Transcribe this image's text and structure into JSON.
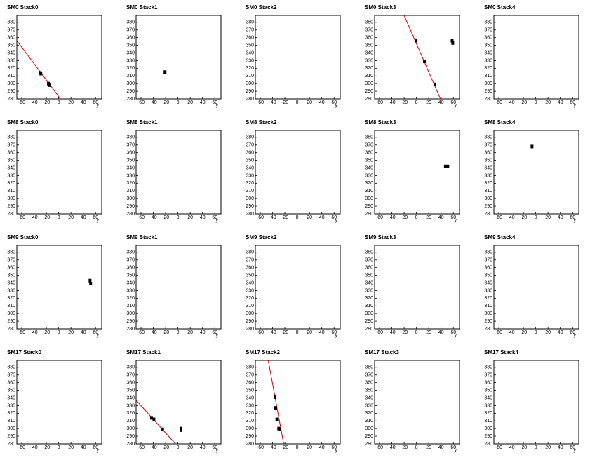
{
  "chart_data": [
    {
      "type": "scatter",
      "title": "SM0 Stack0",
      "xlabel": "y",
      "xlim": [
        -68,
        70
      ],
      "ylim": [
        280,
        389
      ],
      "xticks": [
        -60,
        -40,
        -20,
        0,
        20,
        40,
        60
      ],
      "yticks": [
        280,
        290,
        300,
        310,
        320,
        330,
        340,
        350,
        360,
        370,
        380
      ],
      "color": "#000000",
      "x": [
        -30,
        -29,
        -16.6,
        -15.4
      ],
      "y": [
        314,
        313,
        300,
        298
      ],
      "fit": {
        "color": "#d40000",
        "x": [
          -68,
          3
        ],
        "y": [
          356,
          280
        ]
      }
    },
    {
      "type": "scatter",
      "title": "SM0 Stack1",
      "xlabel": "y",
      "xlim": [
        -68,
        70
      ],
      "ylim": [
        280,
        389
      ],
      "xticks": [
        -60,
        -40,
        -20,
        0,
        20,
        40,
        60
      ],
      "yticks": [
        280,
        290,
        300,
        310,
        320,
        330,
        340,
        350,
        360,
        370,
        380
      ],
      "color": "#000000",
      "x": [
        -21
      ],
      "y": [
        315
      ]
    },
    {
      "type": "scatter",
      "title": "SM0 Stack2",
      "xlabel": "y",
      "xlim": [
        -68,
        70
      ],
      "ylim": [
        280,
        389
      ],
      "xticks": [
        -60,
        -40,
        -20,
        0,
        20,
        40,
        60
      ],
      "yticks": [
        280,
        290,
        300,
        310,
        320,
        330,
        340,
        350,
        360,
        370,
        380
      ],
      "color": "#000000",
      "x": [],
      "y": []
    },
    {
      "type": "scatter",
      "title": "SM0 Stack3",
      "xlabel": "y",
      "xlim": [
        -68,
        70
      ],
      "ylim": [
        280,
        389
      ],
      "xticks": [
        -60,
        -40,
        -20,
        0,
        20,
        40,
        60
      ],
      "yticks": [
        280,
        290,
        300,
        310,
        320,
        330,
        340,
        350,
        360,
        370,
        380
      ],
      "color": "#000000",
      "x": [
        -0.6,
        13,
        30,
        58,
        59
      ],
      "y": [
        356,
        329,
        299,
        356,
        353
      ],
      "fit": {
        "color": "#d40000",
        "x": [
          -20,
          39
        ],
        "y": [
          389,
          280
        ]
      }
    },
    {
      "type": "scatter",
      "title": "SM0 Stack4",
      "xlabel": "y",
      "xlim": [
        -68,
        70
      ],
      "ylim": [
        280,
        389
      ],
      "xticks": [
        -60,
        -40,
        -20,
        0,
        20,
        40,
        60
      ],
      "yticks": [
        280,
        290,
        300,
        310,
        320,
        330,
        340,
        350,
        360,
        370,
        380
      ],
      "color": "#000000",
      "x": [],
      "y": []
    },
    {
      "type": "scatter",
      "title": "SM8 Stack0",
      "xlabel": "y",
      "xlim": [
        -68,
        70
      ],
      "ylim": [
        280,
        389
      ],
      "xticks": [
        -60,
        -40,
        -20,
        0,
        20,
        40,
        60
      ],
      "yticks": [
        280,
        290,
        300,
        310,
        320,
        330,
        340,
        350,
        360,
        370,
        380
      ],
      "color": "#000000",
      "x": [],
      "y": []
    },
    {
      "type": "scatter",
      "title": "SM8 Stack1",
      "xlabel": "y",
      "xlim": [
        -68,
        70
      ],
      "ylim": [
        280,
        389
      ],
      "xticks": [
        -60,
        -40,
        -20,
        0,
        20,
        40,
        60
      ],
      "yticks": [
        280,
        290,
        300,
        310,
        320,
        330,
        340,
        350,
        360,
        370,
        380
      ],
      "color": "#000000",
      "x": [],
      "y": []
    },
    {
      "type": "scatter",
      "title": "SM8 Stack2",
      "xlabel": "y",
      "xlim": [
        -68,
        70
      ],
      "ylim": [
        280,
        389
      ],
      "xticks": [
        -60,
        -40,
        -20,
        0,
        20,
        40,
        60
      ],
      "yticks": [
        280,
        290,
        300,
        310,
        320,
        330,
        340,
        350,
        360,
        370,
        380
      ],
      "color": "#000000",
      "x": [],
      "y": []
    },
    {
      "type": "scatter",
      "title": "SM8 Stack3",
      "xlabel": "y",
      "xlim": [
        -68,
        70
      ],
      "ylim": [
        280,
        389
      ],
      "xticks": [
        -60,
        -40,
        -20,
        0,
        20,
        40,
        60
      ],
      "yticks": [
        280,
        290,
        300,
        310,
        320,
        330,
        340,
        350,
        360,
        370,
        380
      ],
      "color": "#000000",
      "x": [
        47,
        51
      ],
      "y": [
        342,
        342
      ]
    },
    {
      "type": "scatter",
      "title": "SM8 Stack4",
      "xlabel": "y",
      "xlim": [
        -68,
        70
      ],
      "ylim": [
        280,
        389
      ],
      "xticks": [
        -60,
        -40,
        -20,
        0,
        20,
        40,
        60
      ],
      "yticks": [
        280,
        290,
        300,
        310,
        320,
        330,
        340,
        350,
        360,
        370,
        380
      ],
      "color": "#000000",
      "x": [
        -6
      ],
      "y": [
        368
      ]
    },
    {
      "type": "scatter",
      "title": "SM9 Stack0",
      "xlabel": "y",
      "xlim": [
        -68,
        70
      ],
      "ylim": [
        280,
        389
      ],
      "xticks": [
        -60,
        -40,
        -20,
        0,
        20,
        40,
        60
      ],
      "yticks": [
        280,
        290,
        300,
        310,
        320,
        330,
        340,
        350,
        360,
        370,
        380
      ],
      "color": "#000000",
      "x": [
        51,
        52
      ],
      "y": [
        343,
        339
      ]
    },
    {
      "type": "scatter",
      "title": "SM9 Stack1",
      "xlabel": "y",
      "xlim": [
        -68,
        70
      ],
      "ylim": [
        280,
        389
      ],
      "xticks": [
        -60,
        -40,
        -20,
        0,
        20,
        40,
        60
      ],
      "yticks": [
        280,
        290,
        300,
        310,
        320,
        330,
        340,
        350,
        360,
        370,
        380
      ],
      "color": "#000000",
      "x": [],
      "y": []
    },
    {
      "type": "scatter",
      "title": "SM9 Stack2",
      "xlabel": "y",
      "xlim": [
        -68,
        70
      ],
      "ylim": [
        280,
        389
      ],
      "xticks": [
        -60,
        -40,
        -20,
        0,
        20,
        40,
        60
      ],
      "yticks": [
        280,
        290,
        300,
        310,
        320,
        330,
        340,
        350,
        360,
        370,
        380
      ],
      "color": "#000000",
      "x": [],
      "y": []
    },
    {
      "type": "scatter",
      "title": "SM9 Stack3",
      "xlabel": "y",
      "xlim": [
        -68,
        70
      ],
      "ylim": [
        280,
        389
      ],
      "xticks": [
        -60,
        -40,
        -20,
        0,
        20,
        40,
        60
      ],
      "yticks": [
        280,
        290,
        300,
        310,
        320,
        330,
        340,
        350,
        360,
        370,
        380
      ],
      "color": "#000000",
      "x": [],
      "y": []
    },
    {
      "type": "scatter",
      "title": "SM9 Stack4",
      "xlabel": "y",
      "xlim": [
        -68,
        70
      ],
      "ylim": [
        280,
        389
      ],
      "xticks": [
        -60,
        -40,
        -20,
        0,
        20,
        40,
        60
      ],
      "yticks": [
        280,
        290,
        300,
        310,
        320,
        330,
        340,
        350,
        360,
        370,
        380
      ],
      "color": "#000000",
      "x": [],
      "y": []
    },
    {
      "type": "scatter",
      "title": "SM17 Stack0",
      "xlabel": "y",
      "xlim": [
        -68,
        70
      ],
      "ylim": [
        280,
        389
      ],
      "xticks": [
        -60,
        -40,
        -20,
        0,
        20,
        40,
        60
      ],
      "yticks": [
        280,
        290,
        300,
        310,
        320,
        330,
        340,
        350,
        360,
        370,
        380
      ],
      "color": "#000000",
      "x": [],
      "y": []
    },
    {
      "type": "scatter",
      "title": "SM17 Stack1",
      "xlabel": "y",
      "xlim": [
        -68,
        70
      ],
      "ylim": [
        280,
        389
      ],
      "xticks": [
        -60,
        -40,
        -20,
        0,
        20,
        40,
        60
      ],
      "yticks": [
        280,
        290,
        300,
        310,
        320,
        330,
        340,
        350,
        360,
        370,
        380
      ],
      "color": "#000000",
      "x": [
        -43,
        -39,
        -25,
        5,
        5
      ],
      "y": [
        314,
        312,
        299,
        300,
        298
      ],
      "fit": {
        "color": "#d40000",
        "x": [
          -68,
          -4
        ],
        "y": [
          337,
          280
        ]
      }
    },
    {
      "type": "scatter",
      "title": "SM17 Stack2",
      "xlabel": "y",
      "xlim": [
        -68,
        70
      ],
      "ylim": [
        280,
        389
      ],
      "xticks": [
        -60,
        -40,
        -20,
        0,
        20,
        40,
        60
      ],
      "yticks": [
        280,
        290,
        300,
        310,
        320,
        330,
        340,
        350,
        360,
        370,
        380
      ],
      "color": "#000000",
      "x": [
        -36,
        -35,
        -33,
        -30,
        -28
      ],
      "y": [
        341,
        327,
        312,
        300,
        299
      ],
      "fit": {
        "color": "#d40000",
        "x": [
          -47,
          -22
        ],
        "y": [
          389,
          280
        ]
      }
    },
    {
      "type": "scatter",
      "title": "SM17 Stack3",
      "xlabel": "y",
      "xlim": [
        -68,
        70
      ],
      "ylim": [
        280,
        389
      ],
      "xticks": [
        -60,
        -40,
        -20,
        0,
        20,
        40,
        60
      ],
      "yticks": [
        280,
        290,
        300,
        310,
        320,
        330,
        340,
        350,
        360,
        370,
        380
      ],
      "color": "#000000",
      "x": [],
      "y": []
    },
    {
      "type": "scatter",
      "title": "SM17 Stack4",
      "xlabel": "y",
      "xlim": [
        -68,
        70
      ],
      "ylim": [
        280,
        389
      ],
      "xticks": [
        -60,
        -40,
        -20,
        0,
        20,
        40,
        60
      ],
      "yticks": [
        280,
        290,
        300,
        310,
        320,
        330,
        340,
        350,
        360,
        370,
        380
      ],
      "color": "#000000",
      "x": [],
      "y": []
    }
  ]
}
